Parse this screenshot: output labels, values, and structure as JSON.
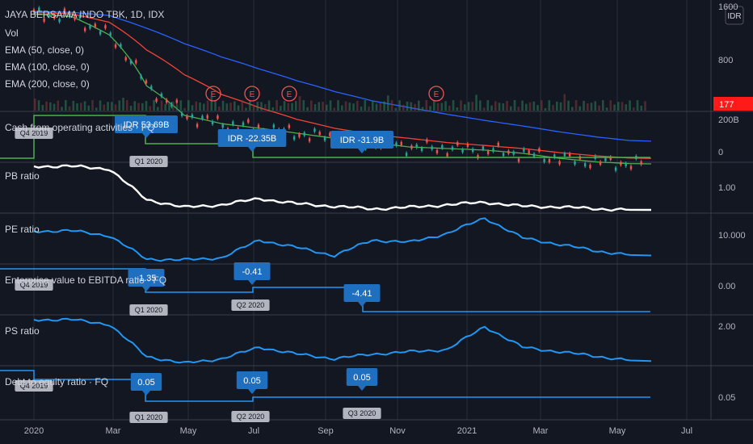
{
  "colors": {
    "bg": "#131722",
    "grid": "#2a2e39",
    "separator": "#3a3e4a",
    "text": "#d1d4dc",
    "axis_text": "#b2b5be",
    "ema50": "#4caf50",
    "ema100": "#f44336",
    "ema200": "#2962ff",
    "blue": "#2196f3",
    "white": "#ffffff",
    "green_line": "#4caf50",
    "earn_red": "#ef5350",
    "callout_blue": "#1e6fbf",
    "gray_tag": "#b2b5be",
    "price_tag": "#ff1a1a"
  },
  "header": {
    "symbol_line": "JAYA BERSAMA INDO TBK, 1D, IDX",
    "vol": "Vol",
    "ema50": "EMA (50, close, 0)",
    "ema100": "EMA (100, close, 0)",
    "ema200": "EMA (200, close, 0)",
    "currency": "IDR"
  },
  "price_tag": "177",
  "earnings_mark": "E",
  "x_axis": [
    "2020",
    "Mar",
    "May",
    "Jul",
    "Sep",
    "Nov",
    "2021",
    "Mar",
    "May",
    "Jul"
  ],
  "panes": {
    "price": {
      "ticks": [
        "1600",
        "800"
      ]
    },
    "cash": {
      "label": "Cash from operating activities · FQ",
      "ticks": [
        "200B",
        "0"
      ],
      "callouts": [
        "IDR 53.69B",
        "IDR -22.35B",
        "IDR -31.9B"
      ],
      "tags": [
        "Q4 2019",
        "Q1 2020"
      ]
    },
    "pb": {
      "label": "PB ratio",
      "ticks": [
        "1.00"
      ]
    },
    "pe": {
      "label": "PE ratio",
      "ticks": [
        "10.000"
      ]
    },
    "ev": {
      "label": "Enterprise value to EBITDA ratio · FQ",
      "ticks": [
        "0.00"
      ],
      "callouts": [
        "-1.35",
        "-0.41",
        "-4.41"
      ],
      "tags": [
        "Q4 2019",
        "Q1 2020",
        "Q2 2020"
      ]
    },
    "ps": {
      "label": "PS ratio",
      "ticks": [
        "2.00"
      ]
    },
    "debt": {
      "label": "Debt to equity ratio · FQ",
      "ticks": [
        "0.05"
      ],
      "callouts": [
        "0.05",
        "0.05",
        "0.05"
      ],
      "tags": [
        "Q4 2019",
        "Q1 2020",
        "Q2 2020",
        "Q3 2020"
      ]
    }
  },
  "chart_data": [
    {
      "type": "line",
      "title": "JAYA BERSAMA INDO TBK, 1D, IDX",
      "x": [
        "2020-01",
        "2020-02",
        "2020-03",
        "2020-04",
        "2020-05",
        "2020-06",
        "2020-07",
        "2020-08",
        "2020-09",
        "2020-10",
        "2020-11",
        "2020-12",
        "2021-01",
        "2021-02",
        "2021-03",
        "2021-04",
        "2021-05"
      ],
      "series": [
        {
          "name": "EMA (50, close, 0)",
          "values": [
            1450,
            1400,
            1100,
            560,
            380,
            340,
            320,
            300,
            280,
            265,
            250,
            245,
            240,
            230,
            215,
            205,
            200
          ]
        },
        {
          "name": "EMA (100, close, 0)",
          "values": [
            1480,
            1450,
            1300,
            900,
            650,
            500,
            420,
            360,
            320,
            295,
            280,
            265,
            255,
            245,
            232,
            222,
            215
          ]
        },
        {
          "name": "EMA (200, close, 0)",
          "values": [
            1500,
            1480,
            1420,
            1200,
            980,
            820,
            700,
            600,
            520,
            460,
            420,
            385,
            355,
            330,
            305,
            285,
            270
          ]
        }
      ],
      "last_price": 177,
      "yticks": [
        1600,
        800
      ]
    },
    {
      "type": "line",
      "title": "Cash from operating activities · FQ",
      "x": [
        "Q4 2019",
        "Q1 2020",
        "Q2 2020",
        "Q3 2020"
      ],
      "series": [
        {
          "values": [
            null,
            53.69,
            -22.35,
            -31.9
          ]
        }
      ],
      "labels": [
        "IDR 53.69B",
        "IDR -22.35B",
        "IDR -31.9B"
      ],
      "yticks": [
        "200B",
        "0"
      ]
    },
    {
      "type": "line",
      "title": "PB ratio",
      "x": [
        "2020-01",
        "2020-02",
        "2020-03",
        "2020-04",
        "2020-05",
        "2020-06",
        "2020-07",
        "2020-08",
        "2020-09",
        "2020-10",
        "2020-11",
        "2020-12",
        "2021-01",
        "2021-02",
        "2021-03",
        "2021-04",
        "2021-05"
      ],
      "series": [
        {
          "values": [
            1.75,
            1.75,
            1.7,
            1.1,
            0.95,
            1.0,
            1.12,
            1.02,
            0.97,
            0.92,
            0.95,
            1.0,
            1.05,
            0.97,
            0.96,
            0.92,
            0.9
          ]
        }
      ],
      "yticks": [
        1.0
      ]
    },
    {
      "type": "line",
      "title": "PE ratio",
      "x": [
        "2020-01",
        "2020-02",
        "2020-03",
        "2020-04",
        "2020-05",
        "2020-06",
        "2020-07",
        "2020-08",
        "2020-09",
        "2020-10",
        "2020-11",
        "2020-12",
        "2021-01",
        "2021-02",
        "2021-03",
        "2021-04",
        "2021-05"
      ],
      "series": [
        {
          "values": [
            13.5,
            13.6,
            12.5,
            7.2,
            7.0,
            7.5,
            11.5,
            9.8,
            8.0,
            11.5,
            11.0,
            13.0,
            16.5,
            12.0,
            10.5,
            9.0,
            8.0
          ]
        }
      ],
      "yticks": [
        10.0
      ]
    },
    {
      "type": "line",
      "title": "Enterprise value to EBITDA ratio · FQ",
      "x": [
        "Q4 2019",
        "Q1 2020",
        "Q2 2020",
        "Q3 2020"
      ],
      "series": [
        {
          "values": [
            null,
            -1.35,
            -0.41,
            -4.41
          ]
        }
      ],
      "yticks": [
        0.0
      ]
    },
    {
      "type": "line",
      "title": "PS ratio",
      "x": [
        "2020-01",
        "2020-02",
        "2020-03",
        "2020-04",
        "2020-05",
        "2020-06",
        "2020-07",
        "2020-08",
        "2020-09",
        "2020-10",
        "2020-11",
        "2020-12",
        "2021-01",
        "2021-02",
        "2021-03",
        "2021-04",
        "2021-05"
      ],
      "series": [
        {
          "values": [
            2.15,
            2.15,
            2.05,
            1.35,
            1.2,
            1.3,
            1.55,
            1.4,
            1.3,
            1.4,
            1.45,
            1.5,
            2.0,
            1.55,
            1.45,
            1.35,
            1.25
          ]
        }
      ],
      "yticks": [
        2.0
      ]
    },
    {
      "type": "line",
      "title": "Debt to equity ratio · FQ",
      "x": [
        "Q4 2019",
        "Q1 2020",
        "Q2 2020",
        "Q3 2020"
      ],
      "series": [
        {
          "values": [
            null,
            0.05,
            0.05,
            0.05
          ]
        }
      ],
      "yticks": [
        0.05
      ]
    }
  ]
}
